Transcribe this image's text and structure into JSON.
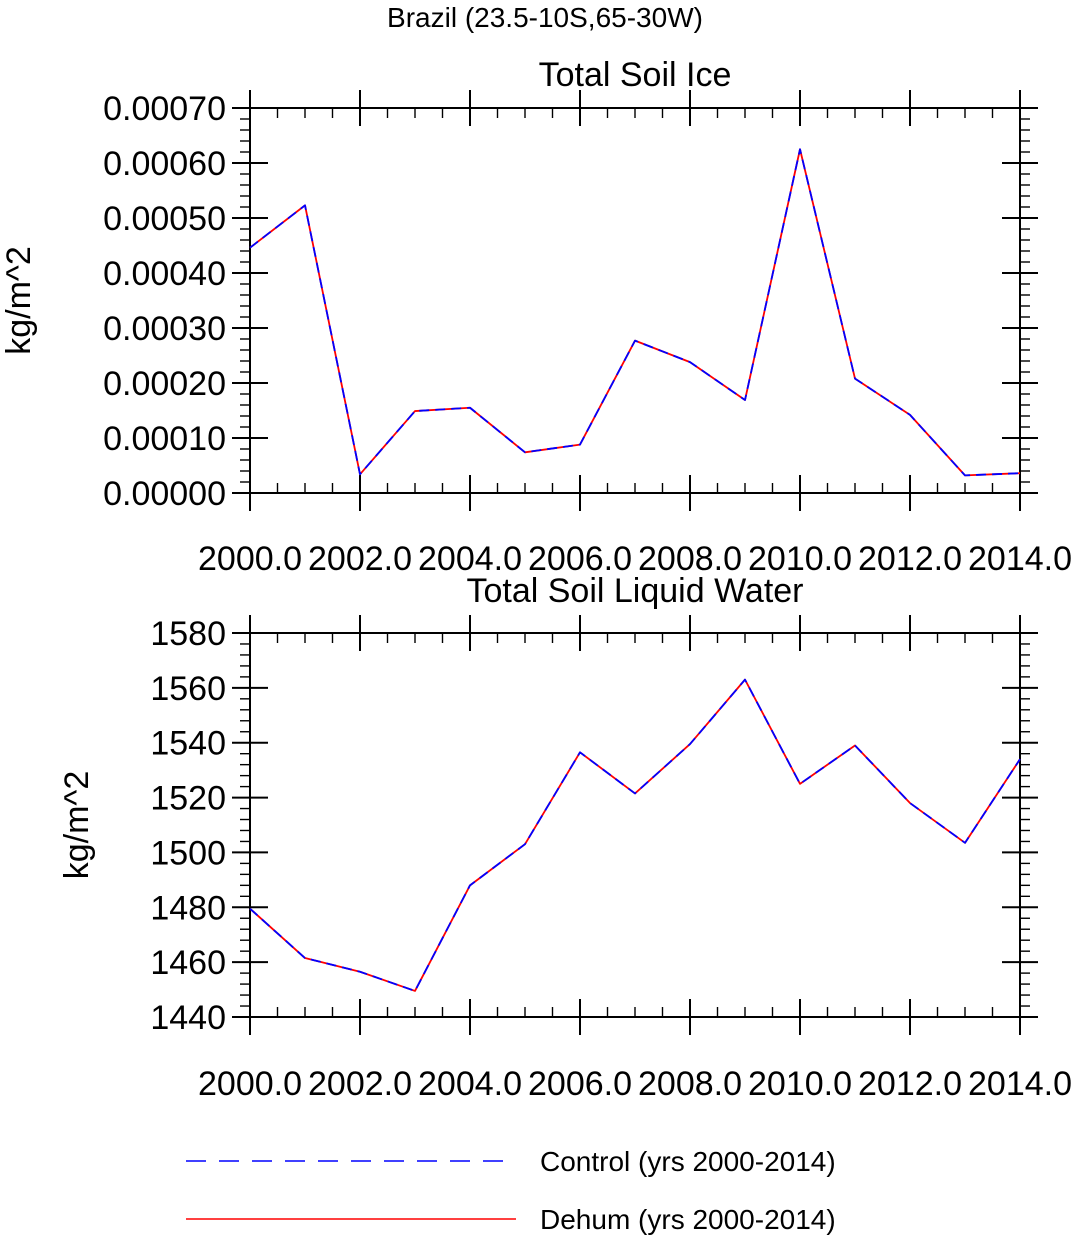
{
  "figure": {
    "suptitle": "Brazil (23.5-10S,65-30W)"
  },
  "legend": {
    "placement": "bottom-left",
    "entries": [
      {
        "name": "Control (yrs 2000-2014)",
        "color": "#0000ff",
        "style": "dashed"
      },
      {
        "name": "Dehum (yrs 2000-2014)",
        "color": "#ff0000",
        "style": "solid"
      }
    ]
  },
  "chart_data": [
    {
      "type": "line",
      "title": "Total Soil Ice",
      "xlabel": "",
      "ylabel": "kg/m^2",
      "x": [
        2000,
        2001,
        2002,
        2003,
        2004,
        2005,
        2006,
        2007,
        2008,
        2009,
        2010,
        2011,
        2012,
        2013,
        2014
      ],
      "xlim": [
        2000,
        2014
      ],
      "ylim": [
        0,
        0.0007
      ],
      "xticks": [
        2000,
        2002,
        2004,
        2006,
        2008,
        2010,
        2012,
        2014
      ],
      "xtick_labels": [
        "2000.0",
        "2002.0",
        "2004.0",
        "2006.0",
        "2008.0",
        "2010.0",
        "2012.0",
        "2014.0"
      ],
      "yticks": [
        0,
        0.0001,
        0.0002,
        0.0003,
        0.0004,
        0.0005,
        0.0006,
        0.0007
      ],
      "ytick_labels": [
        "0.00000",
        "0.00010",
        "0.00020",
        "0.00030",
        "0.00040",
        "0.00050",
        "0.00060",
        "0.00070"
      ],
      "grid": false,
      "series": [
        {
          "name": "Control (yrs 2000-2014)",
          "color": "#0000ff",
          "style": "dashed",
          "values": [
            0.000446,
            0.000523,
            3.4e-05,
            0.000149,
            0.000155,
            7.4e-05,
            8.8e-05,
            0.000277,
            0.000238,
            0.000169,
            0.000625,
            0.000208,
            0.000142,
            3.2e-05,
            3.6e-05
          ]
        },
        {
          "name": "Dehum (yrs 2000-2014)",
          "color": "#ff0000",
          "style": "solid",
          "values": [
            0.000446,
            0.000523,
            3.4e-05,
            0.000149,
            0.000155,
            7.4e-05,
            8.8e-05,
            0.000277,
            0.000238,
            0.000169,
            0.000625,
            0.000208,
            0.000142,
            3.2e-05,
            3.6e-05
          ]
        }
      ]
    },
    {
      "type": "line",
      "title": "Total Soil Liquid Water",
      "xlabel": "",
      "ylabel": "kg/m^2",
      "x": [
        2000,
        2001,
        2002,
        2003,
        2004,
        2005,
        2006,
        2007,
        2008,
        2009,
        2010,
        2011,
        2012,
        2013,
        2014
      ],
      "xlim": [
        2000,
        2014
      ],
      "ylim": [
        1440,
        1580
      ],
      "xticks": [
        2000,
        2002,
        2004,
        2006,
        2008,
        2010,
        2012,
        2014
      ],
      "xtick_labels": [
        "2000.0",
        "2002.0",
        "2004.0",
        "2006.0",
        "2008.0",
        "2010.0",
        "2012.0",
        "2014.0"
      ],
      "yticks": [
        1440,
        1460,
        1480,
        1500,
        1520,
        1540,
        1560,
        1580
      ],
      "ytick_labels": [
        "1440",
        "1460",
        "1480",
        "1500",
        "1520",
        "1540",
        "1560",
        "1580"
      ],
      "grid": false,
      "series": [
        {
          "name": "Control (yrs 2000-2014)",
          "color": "#0000ff",
          "style": "dashed",
          "values": [
            1479.5,
            1461.5,
            1456.5,
            1449.5,
            1488,
            1503,
            1536.5,
            1521.5,
            1539.5,
            1563,
            1525,
            1539,
            1518,
            1503.5,
            1534
          ]
        },
        {
          "name": "Dehum (yrs 2000-2014)",
          "color": "#ff0000",
          "style": "solid",
          "values": [
            1479.5,
            1461.5,
            1456.5,
            1449.5,
            1488,
            1503,
            1536.5,
            1521.5,
            1539.5,
            1563,
            1525,
            1539,
            1518,
            1503.5,
            1534
          ]
        }
      ]
    }
  ]
}
